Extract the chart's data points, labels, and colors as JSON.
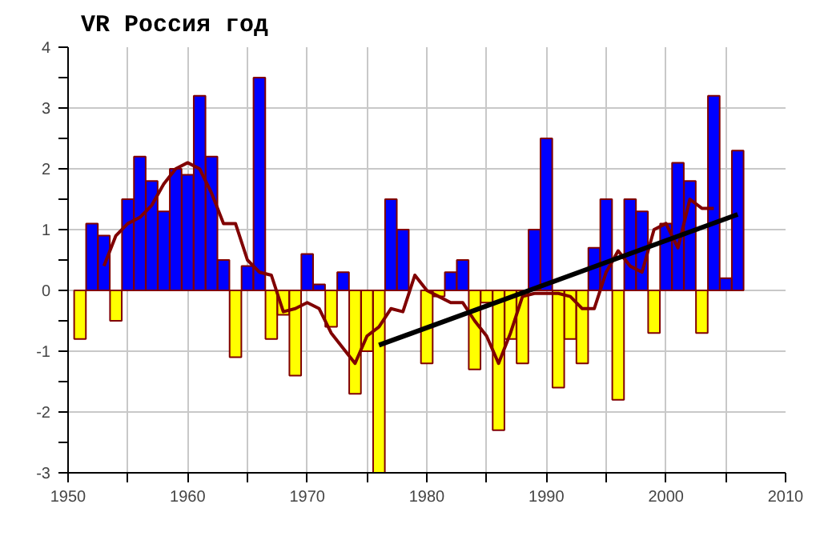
{
  "chart_data": {
    "type": "bar",
    "title": "VR Россия год",
    "x": [
      1951,
      1952,
      1953,
      1954,
      1955,
      1956,
      1957,
      1958,
      1959,
      1960,
      1961,
      1962,
      1963,
      1964,
      1965,
      1966,
      1967,
      1968,
      1969,
      1970,
      1971,
      1972,
      1973,
      1974,
      1975,
      1976,
      1977,
      1978,
      1979,
      1980,
      1981,
      1982,
      1983,
      1984,
      1985,
      1986,
      1987,
      1988,
      1989,
      1990,
      1991,
      1992,
      1993,
      1994,
      1995,
      1996,
      1997,
      1998,
      1999,
      2000,
      2001,
      2002,
      2003,
      2004,
      2005,
      2006
    ],
    "series": [
      {
        "values": [
          -0.8,
          1.1,
          0.9,
          -0.5,
          1.5,
          2.2,
          1.8,
          1.3,
          2.0,
          1.9,
          3.2,
          2.2,
          0.5,
          -1.1,
          0.4,
          3.5,
          -0.8,
          -0.4,
          -1.4,
          0.6,
          0.1,
          -0.6,
          0.3,
          -1.7,
          -1.0,
          -3.0,
          1.5,
          1.0,
          null,
          -1.2,
          -0.1,
          0.3,
          0.5,
          -1.3,
          -0.2,
          -2.3,
          -0.8,
          -1.2,
          1.0,
          2.5,
          -1.6,
          -0.8,
          -1.2,
          0.7,
          1.5,
          -1.8,
          1.5,
          1.3,
          -0.7,
          1.1,
          2.1,
          1.8,
          -0.7,
          3.2,
          0.2,
          2.3
        ],
        "colors": [
          "#ffff00",
          "#0000ff",
          "#0000ff",
          "#ffff00",
          "#0000ff",
          "#0000ff",
          "#0000ff",
          "#0000ff",
          "#0000ff",
          "#0000ff",
          "#0000ff",
          "#0000ff",
          "#0000ff",
          "#ffff00",
          "#0000ff",
          "#0000ff",
          "#ffff00",
          "#ffff00",
          "#ffff00",
          "#0000ff",
          "#0000ff",
          "#ffff00",
          "#0000ff",
          "#ffff00",
          "#ffff00",
          "#ffff00",
          "#0000ff",
          "#0000ff",
          "#0000ff",
          "#ffff00",
          "#ffff00",
          "#0000ff",
          "#0000ff",
          "#ffff00",
          "#ffff00",
          "#ffff00",
          "#ffff00",
          "#ffff00",
          "#0000ff",
          "#0000ff",
          "#ffff00",
          "#ffff00",
          "#ffff00",
          "#0000ff",
          "#0000ff",
          "#ffff00",
          "#0000ff",
          "#0000ff",
          "#ffff00",
          "#0000ff",
          "#0000ff",
          "#0000ff",
          "#ffff00",
          "#0000ff",
          "#0000ff",
          "#0000ff"
        ]
      },
      {
        "type": "line",
        "color": "#800000",
        "x": [
          1953,
          1954,
          1955,
          1956,
          1957,
          1958,
          1959,
          1960,
          1961,
          1962,
          1963,
          1964,
          1965,
          1966,
          1967,
          1968,
          1969,
          1970,
          1971,
          1972,
          1974,
          1975,
          1976,
          1977,
          1978,
          1979,
          1980,
          1981,
          1982,
          1983,
          1984,
          1985,
          1986,
          1987,
          1988,
          1989,
          1990,
          1991,
          1992,
          1993,
          1994,
          1995,
          1996,
          1997,
          1998,
          1999,
          2000,
          2001,
          2002,
          2003,
          2004
        ],
        "values": [
          0.4,
          0.9,
          1.1,
          1.2,
          1.4,
          1.75,
          2.0,
          2.1,
          2.0,
          1.6,
          1.1,
          1.1,
          0.5,
          0.3,
          0.25,
          -0.35,
          -0.3,
          -0.2,
          -0.3,
          -0.7,
          -1.2,
          -0.75,
          -0.6,
          -0.3,
          -0.35,
          0.25,
          0.0,
          -0.1,
          -0.2,
          -0.2,
          -0.5,
          -0.75,
          -1.2,
          -0.7,
          -0.1,
          -0.05,
          -0.05,
          -0.05,
          -0.1,
          -0.3,
          -0.3,
          0.3,
          0.65,
          0.4,
          0.3,
          1.0,
          1.1,
          0.7,
          1.5,
          1.35,
          1.35
        ]
      },
      {
        "type": "line",
        "color": "#000000",
        "x": [
          1976,
          2006
        ],
        "values": [
          -0.9,
          1.25
        ]
      }
    ],
    "xlim": [
      1950,
      2010
    ],
    "xticks": [
      1950,
      {
        "value": 1955,
        "label": null
      },
      1960,
      {
        "value": 1965,
        "label": null
      },
      1970,
      {
        "value": 1975,
        "label": null
      },
      1980,
      {
        "value": 1985,
        "label": null
      },
      1990,
      {
        "value": 1995,
        "label": null
      },
      2000,
      {
        "value": 2005,
        "label": null
      },
      2010
    ],
    "ylim": [
      -3,
      4
    ],
    "yticks": [
      -3,
      {
        "value": -2.5,
        "label": null
      },
      -2,
      {
        "value": -1.5,
        "label": null
      },
      -1,
      {
        "value": -0.5,
        "label": null
      },
      0,
      {
        "value": 0.5,
        "label": null
      },
      1,
      {
        "value": 1.5,
        "label": null
      },
      2,
      {
        "value": 2.5,
        "label": null
      },
      3,
      {
        "value": 3.5,
        "label": null
      },
      4
    ],
    "grid": true
  }
}
